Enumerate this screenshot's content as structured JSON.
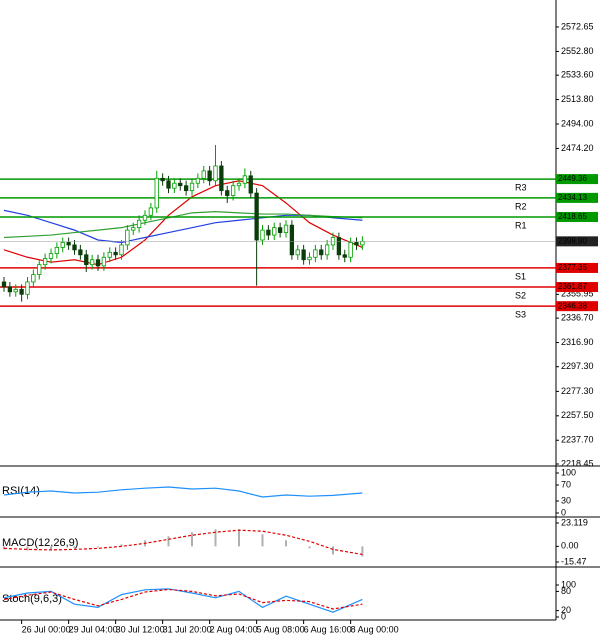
{
  "chart_data": [
    {
      "type": "candlestick",
      "categories": [
        null,
        null,
        null,
        "26 Jul 00:00",
        null,
        null,
        null,
        null,
        null,
        null,
        null,
        "29 Jul 04:00",
        null,
        null,
        null,
        null,
        null,
        null,
        null,
        "30 Jul 12:00",
        null,
        null,
        null,
        null,
        null,
        null,
        null,
        "31 Jul 20:00",
        null,
        null,
        null,
        null,
        null,
        null,
        null,
        "2 Aug 04:00",
        null,
        null,
        null,
        null,
        null,
        null,
        null,
        "5 Aug 08:00",
        null,
        null,
        null,
        null,
        null,
        null,
        null,
        "6 Aug 16:00",
        null,
        null,
        null,
        null,
        null,
        null,
        null,
        "8 Aug 00:00",
        null,
        null
      ],
      "open": [
        2366,
        2362,
        2358,
        2360,
        2356,
        2366,
        2372,
        2380,
        2385,
        2389,
        2394,
        2398,
        2396,
        2392,
        2388,
        2380,
        2384,
        2379,
        2386,
        2390,
        2388,
        2396,
        2408,
        2410,
        2416,
        2420,
        2426,
        2450,
        2448,
        2442,
        2446,
        2444,
        2440,
        2446,
        2450,
        2456,
        2448,
        2460,
        2440,
        2436,
        2444,
        2446,
        2452,
        2438,
        2400,
        2408,
        2404,
        2410,
        2406,
        2412,
        2388,
        2392,
        2384,
        2386,
        2392,
        2388,
        2396,
        2402,
        2388,
        2386,
        2398,
        2396
      ],
      "high": [
        2370,
        2366,
        2364,
        2364,
        2370,
        2376,
        2384,
        2389,
        2393,
        2398,
        2402,
        2402,
        2400,
        2396,
        2392,
        2388,
        2388,
        2390,
        2394,
        2394,
        2400,
        2412,
        2414,
        2420,
        2424,
        2430,
        2456,
        2454,
        2452,
        2450,
        2450,
        2448,
        2450,
        2454,
        2460,
        2460,
        2477,
        2464,
        2444,
        2448,
        2450,
        2458,
        2456,
        2442,
        2412,
        2412,
        2414,
        2414,
        2416,
        2416,
        2396,
        2396,
        2390,
        2396,
        2396,
        2400,
        2406,
        2406,
        2392,
        2402,
        2402,
        2403
      ],
      "low": [
        2358,
        2354,
        2354,
        2350,
        2352,
        2362,
        2368,
        2376,
        2381,
        2385,
        2390,
        2392,
        2388,
        2384,
        2374,
        2376,
        2375,
        2375,
        2382,
        2384,
        2384,
        2392,
        2404,
        2406,
        2412,
        2416,
        2422,
        2444,
        2438,
        2438,
        2440,
        2436,
        2436,
        2442,
        2446,
        2444,
        2444,
        2436,
        2430,
        2432,
        2440,
        2442,
        2434,
        2363,
        2396,
        2400,
        2400,
        2402,
        2402,
        2384,
        2384,
        2380,
        2380,
        2382,
        2384,
        2384,
        2392,
        2384,
        2382,
        2382,
        2392,
        2392
      ],
      "close": [
        2362,
        2358,
        2360,
        2356,
        2366,
        2372,
        2380,
        2385,
        2389,
        2394,
        2398,
        2396,
        2392,
        2388,
        2380,
        2384,
        2379,
        2386,
        2390,
        2388,
        2396,
        2408,
        2410,
        2416,
        2420,
        2426,
        2450,
        2448,
        2442,
        2446,
        2444,
        2440,
        2446,
        2450,
        2456,
        2448,
        2460,
        2440,
        2436,
        2444,
        2446,
        2452,
        2438,
        2400,
        2408,
        2404,
        2410,
        2406,
        2412,
        2388,
        2392,
        2384,
        2386,
        2392,
        2388,
        2396,
        2402,
        2388,
        2386,
        2398,
        2396,
        2398.9
      ],
      "up_color": "#00a000",
      "down_color": "#0b3d0b",
      "ylim": [
        2218.45,
        2594.5
      ],
      "yticks": [
        2572.65,
        {
          "value": 2552.8,
          "label": "2552.80"
        },
        {
          "value": 2533.6,
          "label": "2533.60"
        },
        {
          "value": 2513.8,
          "label": "2513.80"
        },
        {
          "value": 2494,
          "label": "2494.00"
        },
        {
          "value": 2474.2,
          "label": "2474.20"
        },
        2355.95,
        {
          "value": 2336.7,
          "label": "2336.70"
        },
        {
          "value": 2316.9,
          "label": "2316.90"
        },
        {
          "value": 2297.3,
          "label": "2297.30"
        },
        {
          "value": 2277.3,
          "label": "2277.30"
        },
        {
          "value": 2257.5,
          "label": "2257.50"
        },
        {
          "value": 2237.7,
          "label": "2237.70"
        },
        2218.45
      ],
      "series": [
        {
          "color": "#e00000",
          "x": [
            0,
            4,
            8,
            12,
            16,
            20,
            24,
            28,
            32,
            36,
            40,
            44,
            48,
            52,
            56,
            61
          ],
          "values": [
            2392,
            2386,
            2382,
            2384,
            2380,
            2386,
            2400,
            2420,
            2435,
            2444,
            2448,
            2444,
            2430,
            2414,
            2404,
            2394
          ]
        },
        {
          "color": "#2040e0",
          "x": [
            0,
            4,
            8,
            12,
            16,
            20,
            24,
            28,
            32,
            36,
            40,
            44,
            48,
            52,
            56,
            61
          ],
          "values": [
            2424,
            2420,
            2414,
            2408,
            2400,
            2398,
            2402,
            2406,
            2410,
            2414,
            2416,
            2418,
            2420,
            2420,
            2418,
            2416
          ]
        },
        {
          "color": "#30a030",
          "x": [
            0,
            4,
            8,
            12,
            16,
            20,
            24,
            28,
            32,
            36,
            40,
            44,
            48,
            52,
            56,
            61
          ],
          "values": [
            2402,
            2403,
            2404,
            2406,
            2408,
            2410,
            2414,
            2418,
            2422,
            2423,
            2422,
            2421,
            2421,
            2420,
            2419,
            2418
          ]
        }
      ],
      "levels": [
        {
          "name": "R3",
          "value": 2449.36,
          "color": "#009900"
        },
        {
          "name": "R2",
          "value": 2434.13,
          "color": "#009900"
        },
        {
          "name": "R1",
          "value": 2418.65,
          "color": "#009900"
        },
        {
          "name": "S1",
          "value": 2377.35,
          "color": "#e00000"
        },
        {
          "name": "S2",
          "value": 2361.87,
          "color": "#e00000"
        },
        {
          "name": "S3",
          "value": 2346.38,
          "color": "#e00000"
        }
      ],
      "current_price": {
        "value": 2398.9,
        "label": "2398.90"
      }
    },
    {
      "type": "line",
      "title": "RSI(14)",
      "ylim": [
        0,
        100
      ],
      "yticks": [
        100,
        70,
        30,
        0
      ],
      "x": [
        0,
        4,
        8,
        12,
        16,
        20,
        24,
        28,
        32,
        36,
        40,
        44,
        48,
        52,
        56,
        61
      ],
      "series": [
        {
          "color": "#1e90ff",
          "values": [
            45,
            52,
            55,
            50,
            52,
            58,
            62,
            65,
            60,
            62,
            55,
            40,
            45,
            42,
            44,
            50
          ]
        }
      ]
    },
    {
      "type": "macd",
      "title": "MACD(12,26,9)",
      "ylim": [
        -15.47,
        23.119
      ],
      "yticks": [
        23.119,
        {
          "value": 0,
          "label": "0.00"
        },
        -15.47
      ],
      "x": [
        0,
        4,
        8,
        12,
        16,
        20,
        24,
        28,
        32,
        36,
        40,
        44,
        48,
        52,
        56,
        61
      ],
      "histogram": {
        "color": "#b0b0b0",
        "values": [
          -3,
          -4,
          -3,
          -2,
          -1,
          2,
          6,
          10,
          14,
          17,
          17,
          12,
          6,
          -2,
          -8,
          -10
        ]
      },
      "series": [
        {
          "color": "#e00000",
          "dash": true,
          "values": [
            -2,
            -3,
            -3.5,
            -3,
            -2,
            0,
            3,
            7,
            11,
            14,
            16,
            15,
            11,
            5,
            -3,
            -8
          ]
        }
      ]
    },
    {
      "type": "line",
      "title": "Stoch(9,6,3)",
      "ylim": [
        0,
        100
      ],
      "yticks": [
        100,
        80,
        20,
        0
      ],
      "x": [
        0,
        4,
        8,
        12,
        16,
        20,
        24,
        28,
        32,
        36,
        40,
        44,
        48,
        52,
        56,
        61
      ],
      "series": [
        {
          "color": "#1e90ff",
          "values": [
            60,
            75,
            80,
            40,
            30,
            70,
            85,
            88,
            75,
            60,
            80,
            30,
            65,
            40,
            15,
            55
          ]
        },
        {
          "color": "#e00000",
          "dash": true,
          "values": [
            55,
            68,
            78,
            55,
            35,
            55,
            78,
            86,
            80,
            66,
            72,
            45,
            52,
            48,
            25,
            40
          ]
        }
      ]
    }
  ]
}
